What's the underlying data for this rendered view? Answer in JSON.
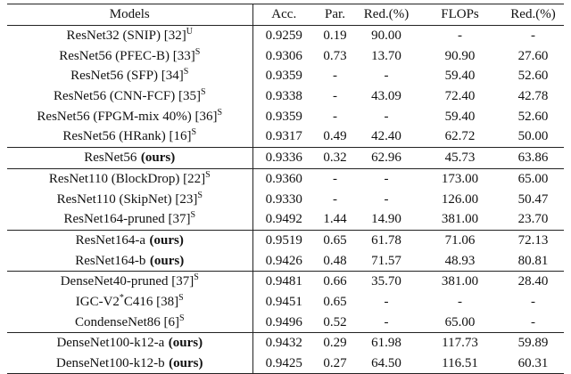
{
  "table": {
    "header": [
      "Models",
      "Acc.",
      "Par.",
      "Red.(%)",
      "FLOPs",
      "Red.(%)"
    ],
    "groups": [
      {
        "rows": [
          {
            "model": [
              {
                "text": "ResNet32 (SNIP) [32]"
              },
              {
                "text": "U",
                "style": "sup"
              }
            ],
            "cells": [
              "0.9259",
              "0.19",
              "90.00",
              "-",
              "-"
            ]
          },
          {
            "model": [
              {
                "text": "ResNet56 (PFEC-B) [33]"
              },
              {
                "text": "S",
                "style": "sup"
              }
            ],
            "cells": [
              "0.9306",
              "0.73",
              "13.70",
              "90.90",
              "27.60"
            ]
          },
          {
            "model": [
              {
                "text": "ResNet56 (SFP) [34]"
              },
              {
                "text": "S",
                "style": "sup"
              }
            ],
            "cells": [
              "0.9359",
              "-",
              "-",
              "59.40",
              "52.60"
            ]
          },
          {
            "model": [
              {
                "text": "ResNet56 (CNN-FCF) [35]"
              },
              {
                "text": "S",
                "style": "sup"
              }
            ],
            "cells": [
              "0.9338",
              "-",
              "43.09",
              "72.40",
              "42.78"
            ]
          },
          {
            "model": [
              {
                "text": "ResNet56 (FPGM-mix 40%) [36]"
              },
              {
                "text": "S",
                "style": "sup"
              }
            ],
            "cells": [
              "0.9359",
              "-",
              "-",
              "59.40",
              "52.60"
            ]
          },
          {
            "model": [
              {
                "text": "ResNet56 (HRank) [16]"
              },
              {
                "text": "S",
                "style": "sup"
              }
            ],
            "cells": [
              "0.9317",
              "0.49",
              "42.40",
              "62.72",
              "50.00"
            ]
          }
        ]
      },
      {
        "rows": [
          {
            "model": [
              {
                "text": "ResNet56"
              },
              {
                "text": "(ours)",
                "style": "bold"
              }
            ],
            "cells": [
              "0.9336",
              "0.32",
              "62.96",
              "45.73",
              "63.86"
            ]
          }
        ]
      },
      {
        "rows": [
          {
            "model": [
              {
                "text": "ResNet110 (BlockDrop) [22]"
              },
              {
                "text": "S",
                "style": "sup"
              }
            ],
            "cells": [
              "0.9360",
              "-",
              "-",
              "173.00",
              "65.00"
            ]
          },
          {
            "model": [
              {
                "text": "ResNet110 (SkipNet) [23]"
              },
              {
                "text": "S",
                "style": "sup"
              }
            ],
            "cells": [
              "0.9330",
              "-",
              "-",
              "126.00",
              "50.47"
            ]
          },
          {
            "model": [
              {
                "text": "ResNet164-pruned [37]"
              },
              {
                "text": "S",
                "style": "sup"
              }
            ],
            "cells": [
              "0.9492",
              "1.44",
              "14.90",
              "381.00",
              "23.70"
            ]
          }
        ]
      },
      {
        "rows": [
          {
            "model": [
              {
                "text": "ResNet164-a"
              },
              {
                "text": "(ours)",
                "style": "bold"
              }
            ],
            "cells": [
              "0.9519",
              "0.65",
              "61.78",
              "71.06",
              "72.13"
            ]
          },
          {
            "model": [
              {
                "text": "ResNet164-b"
              },
              {
                "text": "(ours)",
                "style": "bold"
              }
            ],
            "cells": [
              "0.9426",
              "0.48",
              "71.57",
              "48.93",
              "80.81"
            ]
          }
        ]
      },
      {
        "rows": [
          {
            "model": [
              {
                "text": "DenseNet40-pruned [37]"
              },
              {
                "text": "S",
                "style": "sup"
              }
            ],
            "cells": [
              "0.9481",
              "0.66",
              "35.70",
              "381.00",
              "28.40"
            ]
          },
          {
            "model": [
              {
                "text": "IGC-V2"
              },
              {
                "text": "*",
                "style": "sup"
              },
              {
                "text": "C416 [38]"
              },
              {
                "text": "S",
                "style": "sup"
              }
            ],
            "cells": [
              "0.9451",
              "0.65",
              "-",
              "-",
              "-"
            ]
          },
          {
            "model": [
              {
                "text": "CondenseNet86 [6]"
              },
              {
                "text": "S",
                "style": "sup"
              }
            ],
            "cells": [
              "0.9496",
              "0.52",
              "-",
              "65.00",
              "-"
            ]
          }
        ]
      },
      {
        "rows": [
          {
            "model": [
              {
                "text": "DenseNet100-k12-a"
              },
              {
                "text": "(ours)",
                "style": "bold"
              }
            ],
            "cells": [
              "0.9432",
              "0.29",
              "61.98",
              "117.73",
              "59.89"
            ]
          },
          {
            "model": [
              {
                "text": "DenseNet100-k12-b"
              },
              {
                "text": "(ours)",
                "style": "bold"
              }
            ],
            "cells": [
              "0.9425",
              "0.27",
              "64.50",
              "116.51",
              "60.31"
            ]
          }
        ]
      }
    ]
  }
}
